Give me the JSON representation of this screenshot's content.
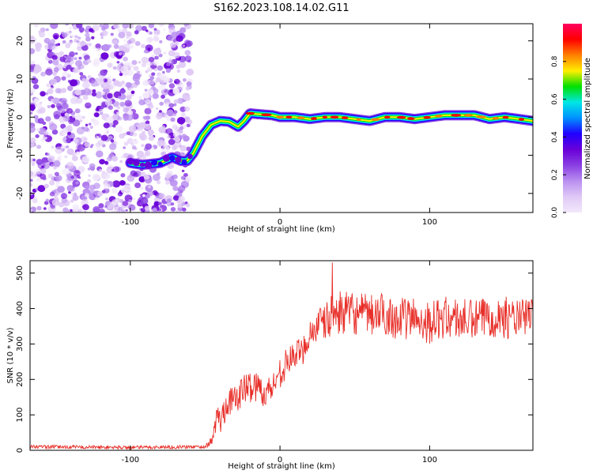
{
  "figure": {
    "title": "S162.2023.108.14.02.G11"
  },
  "chart_data": [
    {
      "type": "heatmap",
      "xlabel": "Height of straight line (km)",
      "ylabel": "Frequency (Hz)",
      "xlim": [
        -167,
        169
      ],
      "ylim": [
        -25,
        24.5
      ],
      "xticks": [
        -100,
        0,
        100
      ],
      "xtick_labels": [
        "-100",
        "0",
        "100"
      ],
      "yticks": [
        -20,
        -10,
        0,
        10,
        20
      ],
      "ytick_labels": [
        "-20",
        "-10",
        "0",
        "10",
        "20"
      ],
      "colorbar": {
        "label": "Normalized spectral amplitude",
        "range": [
          0,
          1
        ],
        "ticks": [
          0.0,
          0.2,
          0.4,
          0.6,
          0.8
        ],
        "tick_labels": [
          "0.0",
          "0.2",
          "0.4",
          "0.6",
          "0.8"
        ],
        "colormap": "rainbow",
        "colors": [
          "#f2e8fb",
          "#e0c9f6",
          "#b98ff0",
          "#8a3fe3",
          "#6a00d8",
          "#2000ff",
          "#0090ff",
          "#00e6e6",
          "#00e000",
          "#ffee00",
          "#ff8000",
          "#ff0000",
          "#ff0060"
        ]
      },
      "noise_region_x": [
        -167,
        -60
      ],
      "ridge": {
        "x": [
          -100,
          -92,
          -80,
          -72,
          -66,
          -62,
          -58,
          -52,
          -46,
          -40,
          -34,
          -28,
          -24,
          -20,
          -15,
          -5,
          0,
          10,
          20,
          30,
          40,
          50,
          60,
          70,
          80,
          90,
          100,
          110,
          120,
          130,
          140,
          150,
          160,
          169
        ],
        "y": [
          -12,
          -12.5,
          -12,
          -10.5,
          -11.5,
          -11.5,
          -9.5,
          -5,
          -2,
          -1,
          -1.2,
          -2.5,
          -1,
          1,
          0.8,
          0.5,
          0,
          0,
          -0.5,
          0,
          0,
          -0.5,
          -1,
          0,
          0,
          -0.5,
          0,
          0.5,
          0.5,
          0.5,
          -0.5,
          0,
          -0.5,
          -1
        ]
      },
      "grid": false,
      "legend": "none"
    },
    {
      "type": "line",
      "xlabel": "Height of straight line (km)",
      "ylabel": "SNR (10 * v/v)",
      "xlim": [
        -167,
        169
      ],
      "ylim": [
        0,
        535
      ],
      "xticks": [
        -100,
        0,
        100
      ],
      "xtick_labels": [
        "-100",
        "0",
        "100"
      ],
      "yticks": [
        0,
        100,
        200,
        300,
        400,
        500
      ],
      "ytick_labels": [
        "0",
        "100",
        "200",
        "300",
        "400",
        "500"
      ],
      "series": [
        {
          "color": "#e8302a",
          "envelope_x": [
            -167,
            -100,
            -50,
            -45,
            -42,
            -40,
            -35,
            -30,
            -25,
            -20,
            -15,
            -10,
            -5,
            0,
            5,
            10,
            15,
            20,
            25,
            30,
            35,
            40,
            50,
            60,
            70,
            80,
            90,
            100,
            110,
            120,
            130,
            140,
            150,
            160,
            169
          ],
          "envelope_y": [
            10,
            8,
            10,
            30,
            100,
            80,
            140,
            140,
            170,
            180,
            180,
            160,
            180,
            220,
            250,
            270,
            280,
            330,
            350,
            360,
            380,
            390,
            385,
            380,
            385,
            370,
            375,
            360,
            375,
            370,
            365,
            380,
            375,
            370,
            385
          ],
          "envelope_spread": [
            5,
            5,
            5,
            12,
            40,
            40,
            40,
            40,
            45,
            45,
            45,
            40,
            40,
            45,
            40,
            40,
            40,
            45,
            50,
            55,
            60,
            60,
            60,
            60,
            60,
            60,
            60,
            60,
            60,
            60,
            60,
            60,
            60,
            55,
            50
          ],
          "peak_x": 35,
          "peak_y": 530
        }
      ],
      "grid": false,
      "legend": "none"
    }
  ]
}
